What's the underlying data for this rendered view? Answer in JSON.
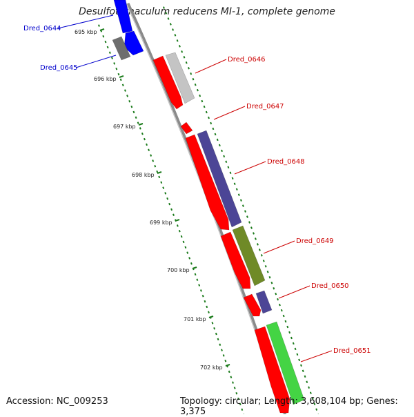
{
  "title": "Desulfotomaculum reducens MI-1, complete genome",
  "footer": {
    "accession": "Accession: NC_009253",
    "topology": "Topology: circular; Length: 3,608,104 bp; Genes: 3,375"
  },
  "kbp_ticks": [
    "695 kbp",
    "696 kbp",
    "697 kbp",
    "698 kbp",
    "699 kbp",
    "700 kbp",
    "701 kbp",
    "702 kbp"
  ],
  "genes": [
    {
      "id": "Dred_0644",
      "color": "#0000cc"
    },
    {
      "id": "Dred_0645",
      "color": "#0000cc"
    },
    {
      "id": "Dred_0646",
      "color": "#cc0000"
    },
    {
      "id": "Dred_0647",
      "color": "#cc0000"
    },
    {
      "id": "Dred_0648",
      "color": "#cc0000"
    },
    {
      "id": "Dred_0649",
      "color": "#cc0000"
    },
    {
      "id": "Dred_0650",
      "color": "#cc0000"
    },
    {
      "id": "Dred_0651",
      "color": "#cc0000"
    }
  ],
  "colors": {
    "backbone": "#8a8a8a",
    "forward_cds": "#ff0000",
    "reverse_cds": "#0000ff",
    "grey_feature": "#6e6e6e",
    "light_grey_feature": "#c4c4c4",
    "purple_feature": "#4c4596",
    "olive_feature": "#6f8a27",
    "green_feature": "#44d444",
    "tick_dots": "#1a7a1a"
  }
}
